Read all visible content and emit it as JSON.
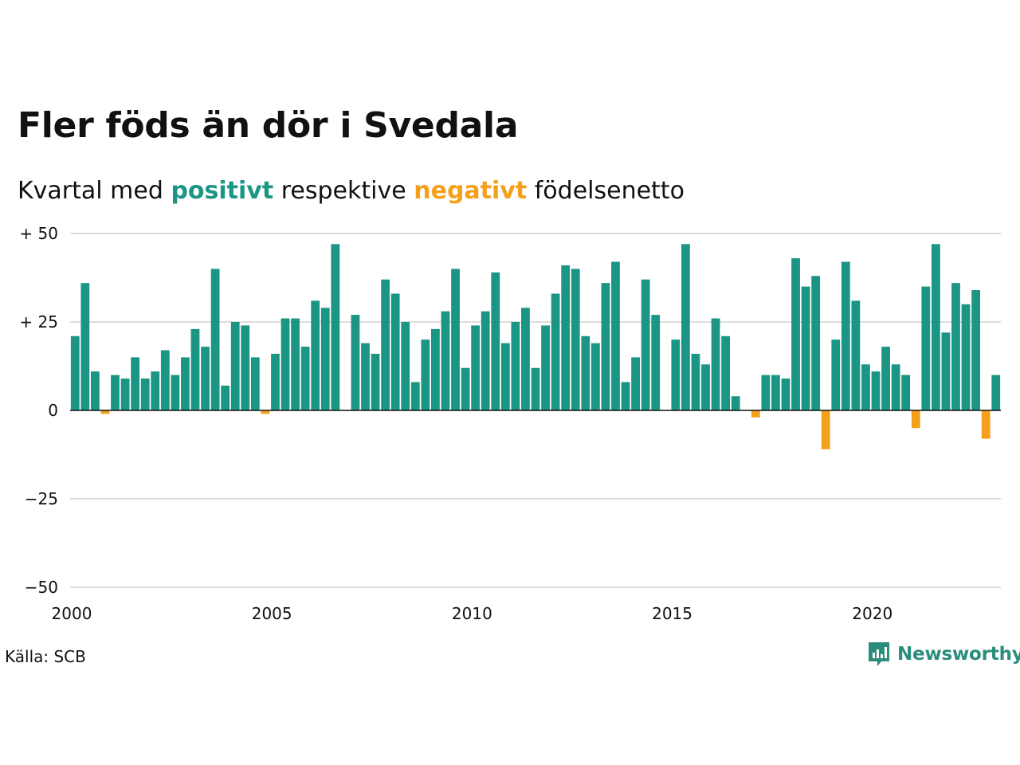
{
  "title": "Fler föds än dör i Svedala",
  "subtitle": {
    "prefix": "Kvartal med",
    "positive": "positivt",
    "middle": "respektive",
    "negative": "negativt",
    "suffix": "födelsenetto"
  },
  "source": "Källa: SCB",
  "brand": "Newsworthy",
  "colors": {
    "positive": "#1b9684",
    "negative": "#f5a01d",
    "grid": "#dddddd",
    "brand": "#2a8c7a"
  },
  "chart_data": {
    "type": "bar",
    "title": "Fler föds än dör i Svedala",
    "x_start": {
      "year": 2000,
      "quarter": 1
    },
    "x_ticks": [
      "2000",
      "2005",
      "2010",
      "2015",
      "2020"
    ],
    "y_ticks": [
      "+ 50",
      "+ 25",
      "0",
      "−25",
      "−50"
    ],
    "ylim": [
      -50,
      50
    ],
    "grid": true,
    "values": [
      21,
      36,
      11,
      -1,
      10,
      9,
      15,
      9,
      11,
      17,
      10,
      15,
      23,
      18,
      40,
      7,
      25,
      24,
      15,
      -1,
      16,
      26,
      26,
      18,
      31,
      29,
      47,
      0,
      27,
      19,
      16,
      37,
      33,
      25,
      8,
      20,
      23,
      28,
      40,
      12,
      24,
      28,
      39,
      19,
      25,
      29,
      12,
      24,
      33,
      41,
      40,
      21,
      19,
      36,
      42,
      8,
      15,
      37,
      27,
      0,
      20,
      47,
      16,
      13,
      26,
      21,
      4,
      0,
      -2,
      10,
      10,
      9,
      43,
      35,
      38,
      -11,
      20,
      42,
      31,
      13,
      11,
      18,
      13,
      10,
      -5,
      35,
      47,
      22,
      36,
      30,
      34,
      -8,
      10
    ]
  }
}
